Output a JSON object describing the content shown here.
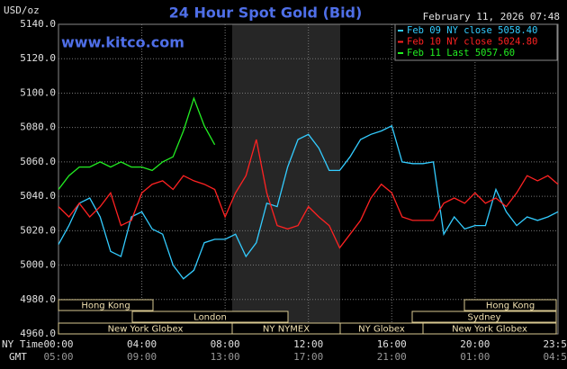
{
  "chart_data": {
    "type": "line",
    "title": "24 Hour Spot Gold (Bid)",
    "watermark": "www.kitco.com",
    "date_label": "February 11, 2026 07:48",
    "y_label": "USD/oz",
    "row_labels": [
      "NY Time",
      "GMT"
    ],
    "x": [
      0,
      0.5,
      1,
      1.5,
      2,
      2.5,
      3,
      3.5,
      4,
      4.5,
      5,
      5.5,
      6,
      6.5,
      7,
      7.5,
      8,
      8.5,
      9,
      9.5,
      10,
      10.5,
      11,
      11.5,
      12,
      12.5,
      13,
      13.5,
      14,
      14.5,
      15,
      15.5,
      16,
      16.5,
      17,
      17.5,
      18,
      18.5,
      19,
      19.5,
      20,
      20.5,
      21,
      21.5,
      22,
      22.5,
      23,
      23.5,
      23.983
    ],
    "xlim": [
      0,
      23.983
    ],
    "xticks": [
      {
        "value": 0,
        "label": "00:00"
      },
      {
        "value": 4,
        "label": "04:00"
      },
      {
        "value": 8,
        "label": "08:00"
      },
      {
        "value": 12,
        "label": "12:00"
      },
      {
        "value": 16,
        "label": "16:00"
      },
      {
        "value": 20,
        "label": "20:00"
      },
      {
        "value": 23.983,
        "label": "23:59"
      }
    ],
    "gmt_ticks": [
      "05:00",
      "09:00",
      "13:00",
      "17:00",
      "21:00",
      "01:00",
      "04:59"
    ],
    "ylim": [
      4960,
      5140
    ],
    "yticks": [
      {
        "value": 4960,
        "label": "4960.0"
      },
      {
        "value": 4980,
        "label": "4980.0"
      },
      {
        "value": 5000,
        "label": "5000.0"
      },
      {
        "value": 5020,
        "label": "5020.0"
      },
      {
        "value": 5040,
        "label": "5040.0"
      },
      {
        "value": 5060,
        "label": "5060.0"
      },
      {
        "value": 5080,
        "label": "5080.0"
      },
      {
        "value": 5100,
        "label": "5100.0"
      },
      {
        "value": 5120,
        "label": "5120.0"
      },
      {
        "value": 5140,
        "label": "5140.0"
      }
    ],
    "grid": true,
    "series": [
      {
        "name": "Feb 09 NY close 5058.40",
        "color": "#33ccff",
        "values": [
          5012,
          5023,
          5036,
          5039,
          5028,
          5008,
          5005,
          5028,
          5031,
          5021,
          5018,
          5000,
          4992,
          4997,
          5013,
          5015,
          5015,
          5018,
          5005,
          5013,
          5036,
          5034,
          5057,
          5073,
          5076,
          5068,
          5055,
          5055,
          5063,
          5073,
          5076,
          5078,
          5081,
          5060,
          5059,
          5059,
          5060,
          5018,
          5028,
          5021,
          5023,
          5023,
          5044,
          5031,
          5023,
          5028,
          5026,
          5028,
          5031
        ]
      },
      {
        "name": "Feb 10 NY close 5024.80",
        "color": "#ff2222",
        "values": [
          5034,
          5028,
          5036,
          5028,
          5034,
          5042,
          5023,
          5026,
          5042,
          5047,
          5049,
          5044,
          5052,
          5049,
          5047,
          5044,
          5028,
          5042,
          5052,
          5073,
          5042,
          5023,
          5021,
          5023,
          5034,
          5028,
          5023,
          5010,
          5018,
          5026,
          5039,
          5047,
          5042,
          5028,
          5026,
          5026,
          5026,
          5036,
          5039,
          5036,
          5042,
          5036,
          5039,
          5034,
          5042,
          5052,
          5049,
          5052,
          5047
        ]
      },
      {
        "name": "Feb 11 Last 5057.60",
        "color": "#22ee22",
        "values": [
          5044,
          5052,
          5057,
          5057,
          5060,
          5057,
          5060,
          5057,
          5057,
          5055,
          5060,
          5063,
          5078,
          5097,
          5081,
          5070,
          null,
          null,
          null,
          null,
          null,
          null,
          null,
          null,
          null,
          null,
          null,
          null,
          null,
          null,
          null,
          null,
          null,
          null,
          null,
          null,
          null,
          null,
          null,
          null,
          null,
          null,
          null,
          null,
          null,
          null,
          null,
          null,
          null
        ]
      }
    ],
    "sessions": [
      "Hong Kong",
      "Hong Kong",
      "London",
      "Sydney",
      "New York Globex",
      "NY NYMEX",
      "NY Globex",
      "New York Globex"
    ]
  }
}
